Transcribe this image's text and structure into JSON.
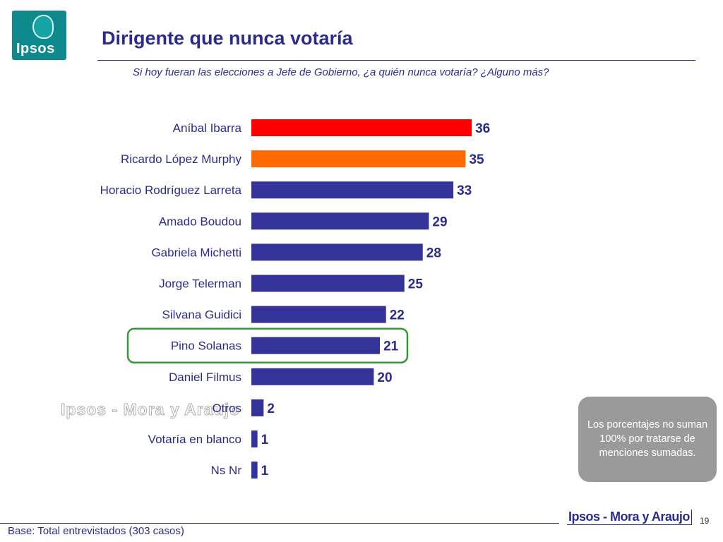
{
  "header": {
    "logo_text": "Ipsos",
    "title": "Dirigente que nunca votaría",
    "question": "Si hoy fueran las elecciones a Jefe de Gobierno, ¿a quién nunca votaría? ¿Alguno más?"
  },
  "chart_data": {
    "type": "bar",
    "orientation": "horizontal",
    "categories": [
      "Aníbal Ibarra",
      "Ricardo López Murphy",
      "Horacio Rodríguez Larreta",
      "Amado Boudou",
      "Gabriela Michetti",
      "Jorge Telerman",
      "Silvana Guidici",
      "Pino Solanas",
      "Daniel Filmus",
      "Otros",
      "Votaría en blanco",
      "Ns Nr"
    ],
    "values": [
      36,
      35,
      33,
      29,
      28,
      25,
      22,
      21,
      20,
      2,
      1,
      1
    ],
    "colors": [
      "#ff0000",
      "#ff6a00",
      "#333399",
      "#333399",
      "#333399",
      "#333399",
      "#333399",
      "#333399",
      "#333399",
      "#333399",
      "#333399",
      "#333399"
    ],
    "highlighted_category": "Pino Solanas",
    "highlight_color": "#339933",
    "xlim": [
      0,
      36
    ],
    "grid": false,
    "legend": "none"
  },
  "note": {
    "text": "Los porcentajes no suman 100% por tratarse de menciones sumadas."
  },
  "watermark": "Ipsos - Mora y Araujo",
  "footer": {
    "base": "Base: Total entrevistados (303 casos)",
    "logo_text": "Ipsos - Mora y Araujo",
    "page_number": "19"
  },
  "colors": {
    "brand_blue": "#2b2b8f",
    "logo_teal": "#0f8a8c"
  }
}
